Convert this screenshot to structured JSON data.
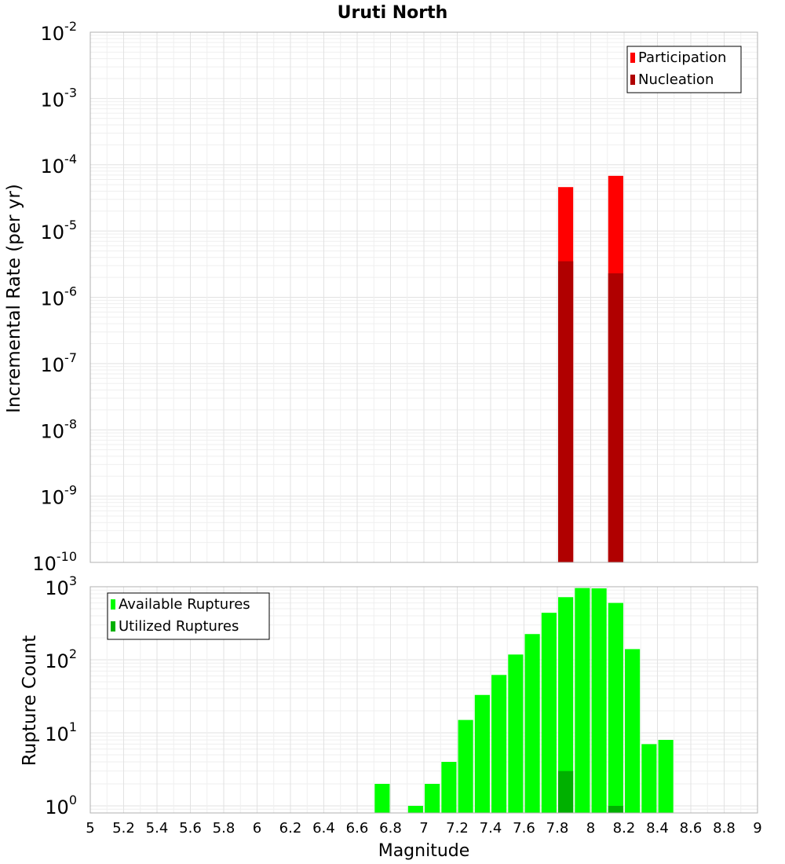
{
  "figure": {
    "title": "Uruti North",
    "xlabel": "Magnitude"
  },
  "chart_data": [
    {
      "type": "bar",
      "panel": "top",
      "yscale": "log",
      "ylabel": "Incremental Rate (per yr)",
      "xlim": [
        5,
        9
      ],
      "ylim": [
        1e-10,
        0.01
      ],
      "x_ticks": [
        "5",
        "5.2",
        "5.4",
        "5.6",
        "5.8",
        "6",
        "6.2",
        "6.4",
        "6.6",
        "6.8",
        "7",
        "7.2",
        "7.4",
        "7.6",
        "7.8",
        "8",
        "8.2",
        "8.4",
        "8.6",
        "8.8",
        "9"
      ],
      "y_ticks": [
        {
          "value": 1e-10,
          "base": "10",
          "exp": "-10"
        },
        {
          "value": 1e-09,
          "base": "10",
          "exp": "-9"
        },
        {
          "value": 1e-08,
          "base": "10",
          "exp": "-8"
        },
        {
          "value": 1e-07,
          "base": "10",
          "exp": "-7"
        },
        {
          "value": 1e-06,
          "base": "10",
          "exp": "-6"
        },
        {
          "value": 1e-05,
          "base": "10",
          "exp": "-5"
        },
        {
          "value": 0.0001,
          "base": "10",
          "exp": "-4"
        },
        {
          "value": 0.001,
          "base": "10",
          "exp": "-3"
        },
        {
          "value": 0.01,
          "base": "10",
          "exp": "-2"
        }
      ],
      "bar_width": 0.09,
      "series": [
        {
          "name": "Participation",
          "color": "#ff0000",
          "x": [
            7.85,
            8.15
          ],
          "values": [
            4.6e-05,
            6.8e-05
          ]
        },
        {
          "name": "Nucleation",
          "color": "#b00000",
          "x": [
            7.85,
            8.15
          ],
          "values": [
            3.5e-06,
            2.3e-06
          ]
        }
      ],
      "legend": {
        "position": "top-right",
        "items": [
          "Participation",
          "Nucleation"
        ]
      }
    },
    {
      "type": "bar",
      "panel": "bottom",
      "yscale": "log",
      "ylabel": "Rupture Count",
      "xlim": [
        5,
        9
      ],
      "ylim": [
        0.8,
        1000
      ],
      "x_ticks": [
        "5",
        "5.2",
        "5.4",
        "5.6",
        "5.8",
        "6",
        "6.2",
        "6.4",
        "6.6",
        "6.8",
        "7",
        "7.2",
        "7.4",
        "7.6",
        "7.8",
        "8",
        "8.2",
        "8.4",
        "8.6",
        "8.8",
        "9"
      ],
      "y_ticks": [
        {
          "value": 1,
          "base": "10",
          "exp": "0"
        },
        {
          "value": 10,
          "base": "10",
          "exp": "1"
        },
        {
          "value": 100,
          "base": "10",
          "exp": "2"
        },
        {
          "value": 1000,
          "base": "10",
          "exp": "3"
        }
      ],
      "bar_width": 0.09,
      "series": [
        {
          "name": "Available Ruptures",
          "color": "#00ff00",
          "x": [
            6.75,
            6.95,
            7.05,
            7.15,
            7.25,
            7.35,
            7.45,
            7.55,
            7.65,
            7.75,
            7.85,
            7.95,
            8.05,
            8.15,
            8.25,
            8.35,
            8.45
          ],
          "values": [
            2,
            1,
            2,
            4,
            15,
            33,
            62,
            118,
            225,
            440,
            720,
            960,
            950,
            600,
            140,
            7,
            8
          ]
        },
        {
          "name": "Utilized Ruptures",
          "color": "#00b000",
          "x": [
            7.85,
            8.15
          ],
          "values": [
            3,
            1
          ]
        }
      ],
      "legend": {
        "position": "top-left",
        "items": [
          "Available Ruptures",
          "Utilized Ruptures"
        ]
      }
    }
  ]
}
